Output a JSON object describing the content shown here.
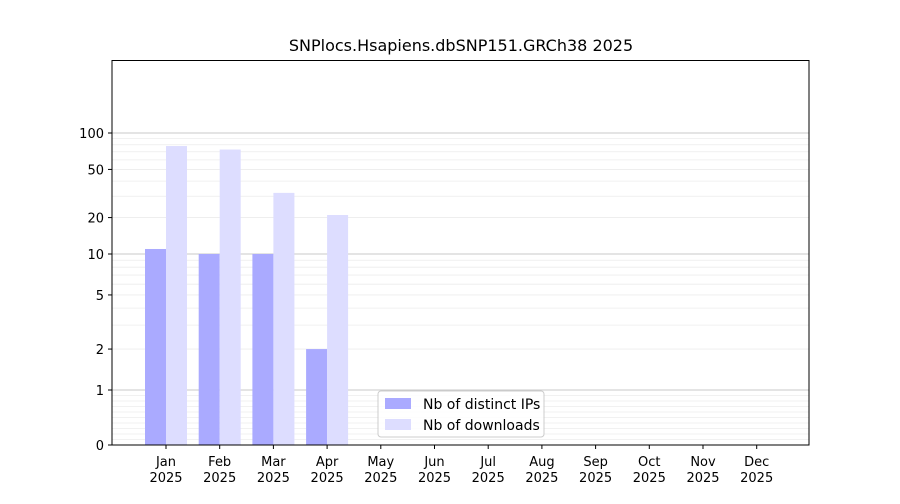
{
  "chart_data": {
    "type": "bar",
    "title": "SNPlocs.Hsapiens.dbSNP151.GRCh38 2025",
    "xlabel": "",
    "ylabel": "",
    "y_scale": "symlog",
    "y_ticks": [
      0,
      1,
      2,
      5,
      10,
      20,
      50,
      100
    ],
    "y_tick_labels": [
      "0",
      "1",
      "2",
      "5",
      "10",
      "20",
      "50",
      "100"
    ],
    "ylim": [
      0,
      120
    ],
    "categories": [
      "Jan\n2025",
      "Feb\n2025",
      "Mar\n2025",
      "Apr\n2025",
      "May\n2025",
      "Jun\n2025",
      "Jul\n2025",
      "Aug\n2025",
      "Sep\n2025",
      "Oct\n2025",
      "Nov\n2025",
      "Dec\n2025"
    ],
    "series": [
      {
        "name": "Nb of distinct IPs",
        "color": "#aaaaff",
        "values": [
          11,
          10,
          10,
          2,
          null,
          null,
          null,
          null,
          null,
          null,
          null,
          null
        ]
      },
      {
        "name": "Nb of downloads",
        "color": "#ddddff",
        "values": [
          78,
          73,
          32,
          21,
          null,
          null,
          null,
          null,
          null,
          null,
          null,
          null
        ]
      }
    ],
    "grid": true,
    "legend_position": "bottom-center"
  }
}
